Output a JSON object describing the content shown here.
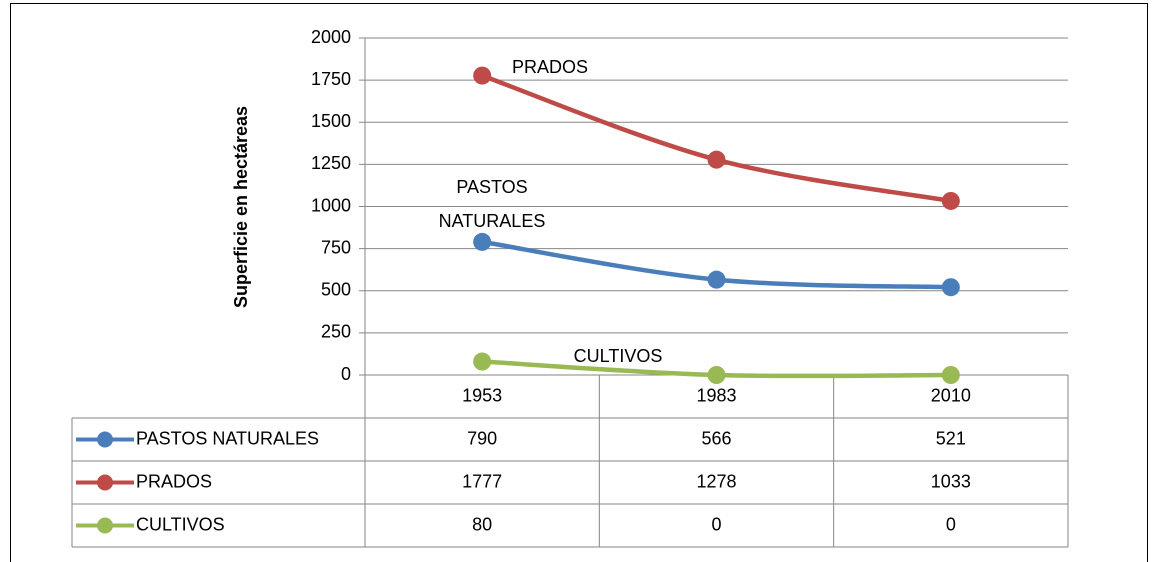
{
  "chart_data": {
    "type": "line",
    "y_label": "Superficie en hectáreas",
    "categories": [
      "1953",
      "1983",
      "2010"
    ],
    "series": [
      {
        "name": "PASTOS NATURALES",
        "color": "#4a7ebb",
        "values": [
          790,
          566,
          521
        ]
      },
      {
        "name": "PRADOS",
        "color": "#be4b48",
        "values": [
          1777,
          1278,
          1033
        ]
      },
      {
        "name": "CULTIVOS",
        "color": "#98b954",
        "values": [
          80,
          0,
          0
        ]
      }
    ],
    "annotations": [
      {
        "lines": [
          "PRADOS"
        ]
      },
      {
        "lines": [
          "PASTOS",
          "NATURALES"
        ]
      },
      {
        "lines": [
          "CULTIVOS"
        ]
      }
    ],
    "ylim": [
      0,
      2000
    ],
    "yticks": [
      0,
      250,
      500,
      750,
      1000,
      1250,
      1500,
      1750,
      2000
    ],
    "grid": true,
    "smooth": true,
    "data_table": true
  }
}
